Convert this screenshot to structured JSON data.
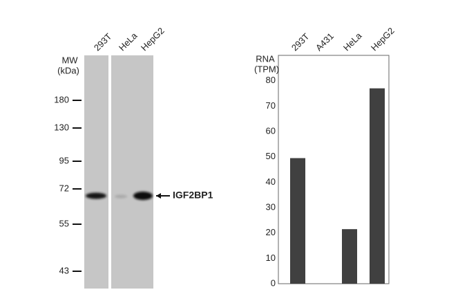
{
  "blot": {
    "mw_title": "MW",
    "mw_unit": "(kDa)",
    "markers": [
      180,
      130,
      95,
      72,
      55,
      43
    ],
    "lanes": [
      "293T",
      "HeLa",
      "HepG2"
    ],
    "target": "IGF2BP1"
  },
  "chart_data": {
    "type": "bar",
    "ylabel": "RNA",
    "yunit": "(TPM)",
    "categories": [
      "293T",
      "A431",
      "HeLa",
      "HepG2"
    ],
    "values": [
      49.5,
      0,
      21.5,
      77
    ],
    "color": "#404040",
    "ylim": [
      0,
      90
    ],
    "yticks": [
      0,
      10,
      20,
      30,
      40,
      50,
      60,
      70,
      80
    ]
  }
}
